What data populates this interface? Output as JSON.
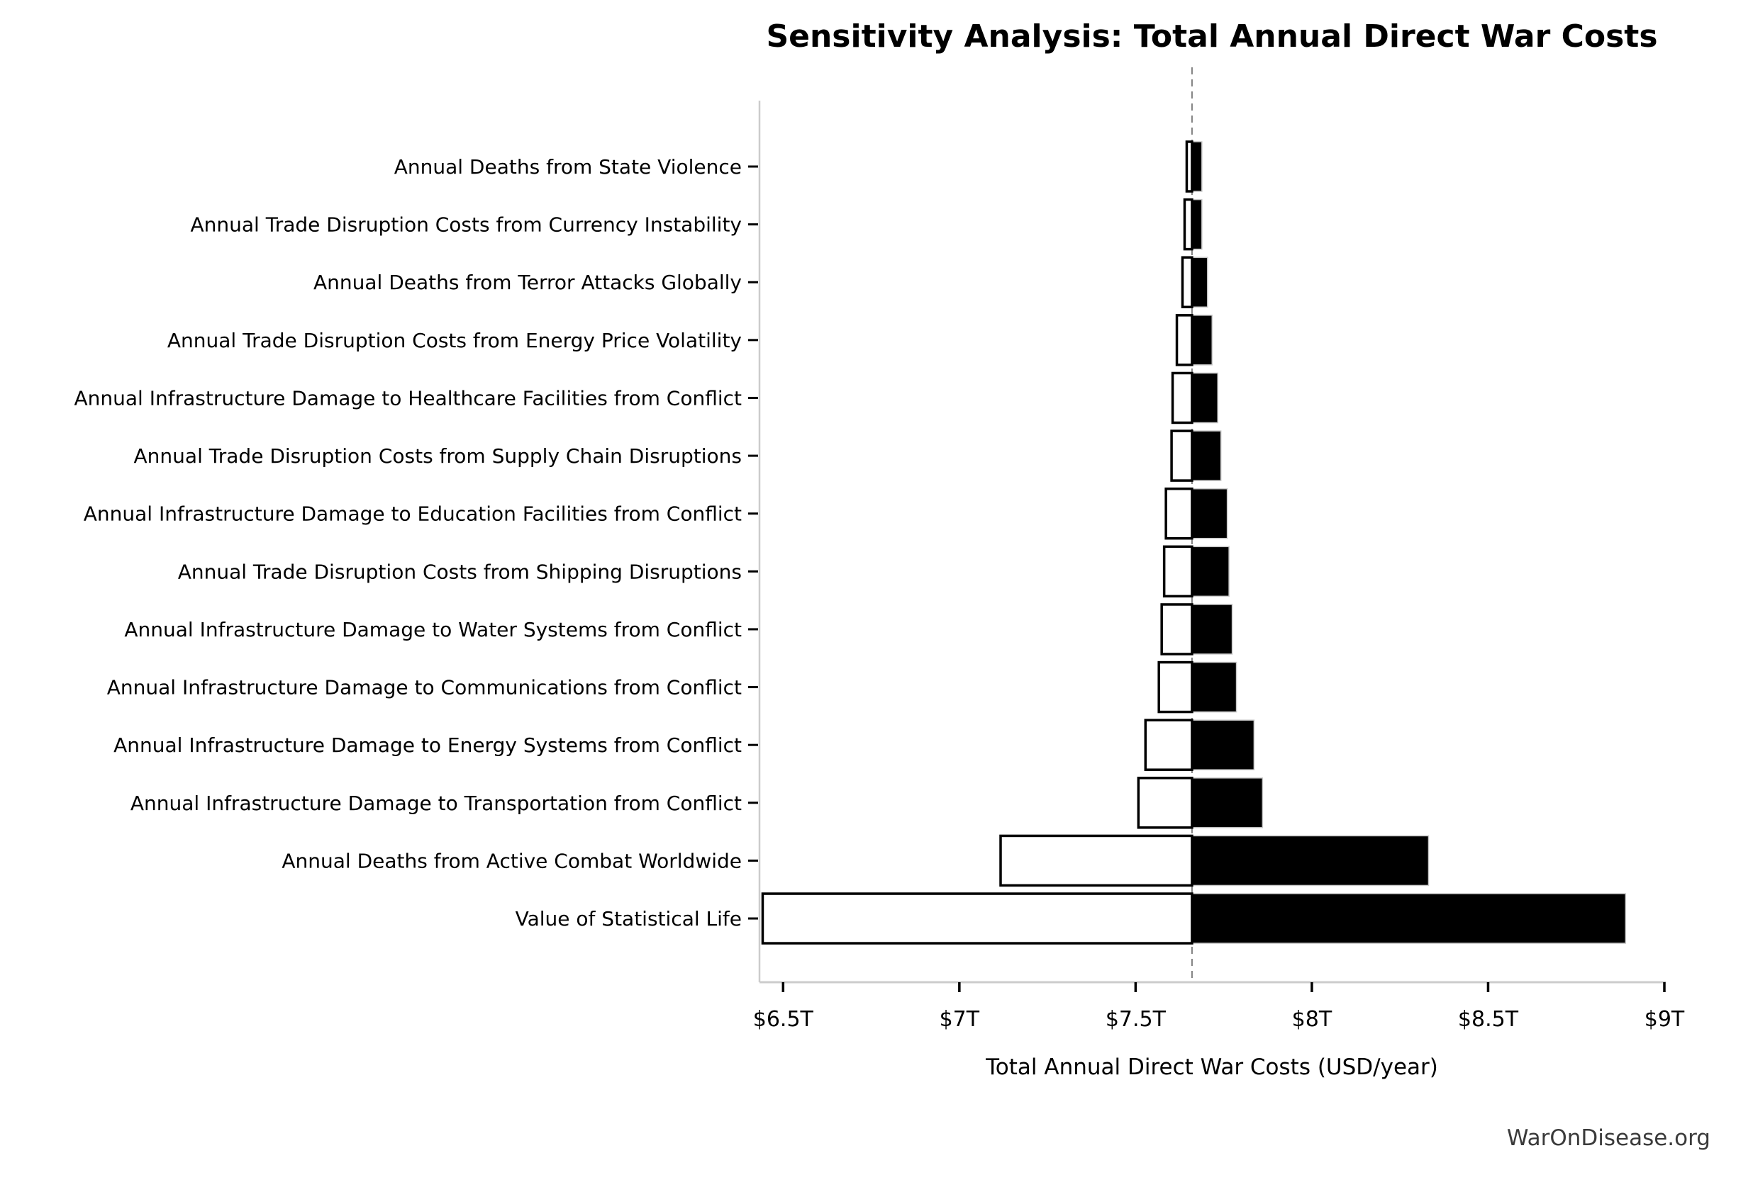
{
  "page": {
    "watermark": "WarOnDisease.org"
  },
  "chart_data": {
    "type": "bar",
    "subtype": "tornado-sensitivity",
    "orientation": "horizontal",
    "title": "Sensitivity Analysis: Total Annual Direct War Costs",
    "xlabel": "Total Annual Direct War Costs (USD/year)",
    "ylabel": "",
    "unit": "trillion USD per year",
    "xlim": [
      6.433,
      9.0
    ],
    "x_tick_values": [
      6.5,
      7.0,
      7.5,
      8.0,
      8.5,
      9.0
    ],
    "x_tick_labels": [
      "$6.5T",
      "$7T",
      "$7.5T",
      "$8T",
      "$8.5T",
      "$9T"
    ],
    "baseline_value": 7.66,
    "grid": false,
    "legend_position": "none",
    "categories": [
      "Annual Deaths from State Violence",
      "Annual Trade Disruption Costs from Currency Instability",
      "Annual Deaths from Terror Attacks Globally",
      "Annual Trade Disruption Costs from Energy Price Volatility",
      "Annual Infrastructure Damage to Healthcare Facilities from Conflict",
      "Annual Trade Disruption Costs from Supply Chain Disruptions",
      "Annual Infrastructure Damage to Education Facilities from Conflict",
      "Annual Trade Disruption Costs from Shipping Disruptions",
      "Annual Infrastructure Damage to Water Systems from Conflict",
      "Annual Infrastructure Damage to Communications from Conflict",
      "Annual Infrastructure Damage to Energy Systems from Conflict",
      "Annual Infrastructure Damage to Transportation from Conflict",
      "Annual Deaths from Active Combat Worldwide",
      "Value of Statistical Life"
    ],
    "series": [
      {
        "name": "low_estimate",
        "values": [
          7.645,
          7.639,
          7.633,
          7.617,
          7.605,
          7.602,
          7.586,
          7.581,
          7.574,
          7.566,
          7.528,
          7.508,
          7.117,
          6.442
        ]
      },
      {
        "name": "high_estimate",
        "values": [
          7.688,
          7.688,
          7.704,
          7.717,
          7.733,
          7.742,
          7.76,
          7.765,
          7.774,
          7.786,
          7.836,
          7.86,
          8.331,
          8.89
        ]
      }
    ],
    "colors": {
      "low_bar_fill": "#ffffff",
      "low_bar_edge": "#000000",
      "high_bar_fill": "#000000",
      "high_bar_edge": "#c8c8c8",
      "baseline_line": "#808080",
      "spine": "#cccccc",
      "tick": "#000000",
      "text": "#000000"
    }
  }
}
